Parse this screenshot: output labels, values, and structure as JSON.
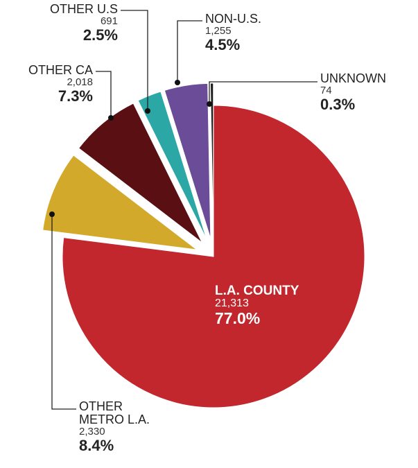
{
  "chart_data": {
    "type": "pie",
    "categories": [
      "L.A. COUNTY",
      "OTHER METRO L.A.",
      "OTHER CA",
      "OTHER U.S",
      "NON-U.S.",
      "UNKNOWN"
    ],
    "values": [
      77.0,
      8.4,
      7.3,
      2.5,
      4.5,
      0.3
    ],
    "value_labels": [
      "77.0%",
      "8.4%",
      "7.3%",
      "2.5%",
      "4.5%",
      "0.3%"
    ],
    "counts": [
      21313,
      2330,
      2018,
      691,
      1255,
      74
    ],
    "count_labels": [
      "21,313",
      "2,330",
      "2,018",
      "691",
      "1,255",
      "74"
    ],
    "colors": [
      "#c1272d",
      "#d3a92b",
      "#5a0f12",
      "#2ba7a5",
      "#6a4c98",
      "#1c1c1c"
    ]
  }
}
